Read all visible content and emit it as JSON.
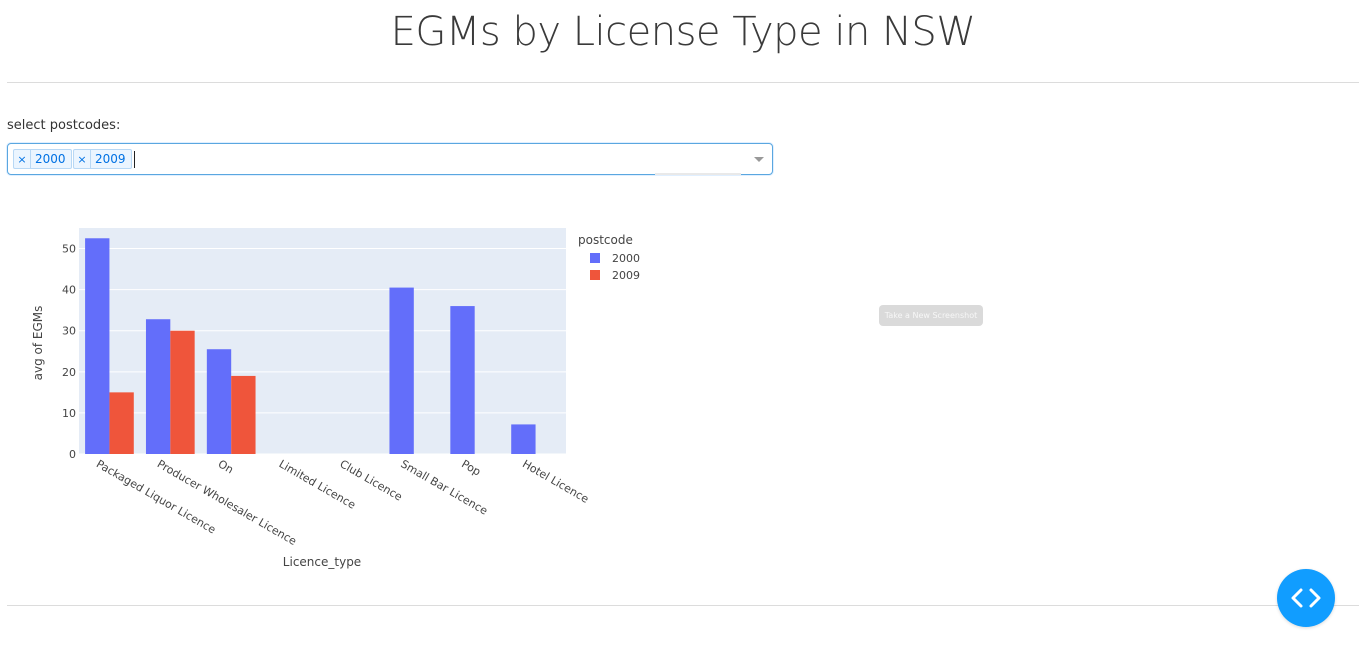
{
  "page": {
    "title": "EGMs by License Type in NSW"
  },
  "filter": {
    "label": "select postcodes:",
    "selected": [
      "2000",
      "2009"
    ],
    "remove_glyph": "×"
  },
  "screenshot_button": {
    "label": "Take a New Screenshot"
  },
  "devtools": {
    "icon": "code-icon"
  },
  "colors": {
    "series_2000": "#636efa",
    "series_2009": "#ef553b",
    "plot_bg": "#e5ecf6",
    "accent": "#119dff"
  },
  "chart_data": {
    "type": "bar",
    "xlabel": "Licence_type",
    "ylabel": "avg of EGMs",
    "ylim": [
      0,
      55
    ],
    "yticks": [
      0,
      10,
      20,
      30,
      40,
      50
    ],
    "grid": true,
    "legend_title": "postcode",
    "legend_position": "right",
    "categories": [
      "Packaged Liquor Licence",
      "Producer Wholesaler Licence",
      "On",
      "Limited Licence",
      "Club Licence",
      "Small Bar Licence",
      "Pop",
      "Hotel Licence"
    ],
    "series": [
      {
        "name": "2000",
        "values": [
          52.5,
          32.8,
          25.5,
          0,
          0,
          40.5,
          36,
          7.2
        ]
      },
      {
        "name": "2009",
        "values": [
          15,
          30,
          19,
          0,
          0,
          0,
          0,
          0
        ]
      }
    ]
  }
}
